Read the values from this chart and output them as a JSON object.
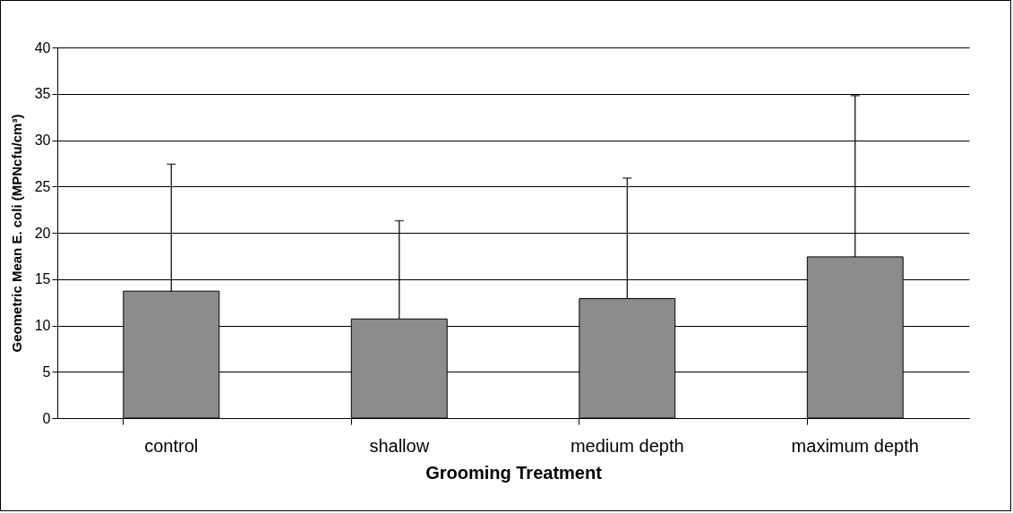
{
  "chart_data": {
    "type": "bar",
    "xlabel": "Grooming Treatment",
    "ylabel": "Geometric Mean E. coli (MPNcfu/cm³)",
    "categories": [
      "control",
      "shallow",
      "medium depth",
      "maximum depth"
    ],
    "values": [
      13.7,
      10.7,
      12.9,
      17.4
    ],
    "errors": [
      [
        13.7,
        27.4
      ],
      [
        10.7,
        21.3
      ],
      [
        12.9,
        25.9
      ],
      [
        17.4,
        34.8
      ]
    ],
    "color": "#8c8c8c",
    "ylim": [
      0,
      40
    ],
    "yticks": [
      0,
      5,
      10,
      15,
      20,
      25,
      30,
      35,
      40
    ],
    "grid": "y"
  }
}
